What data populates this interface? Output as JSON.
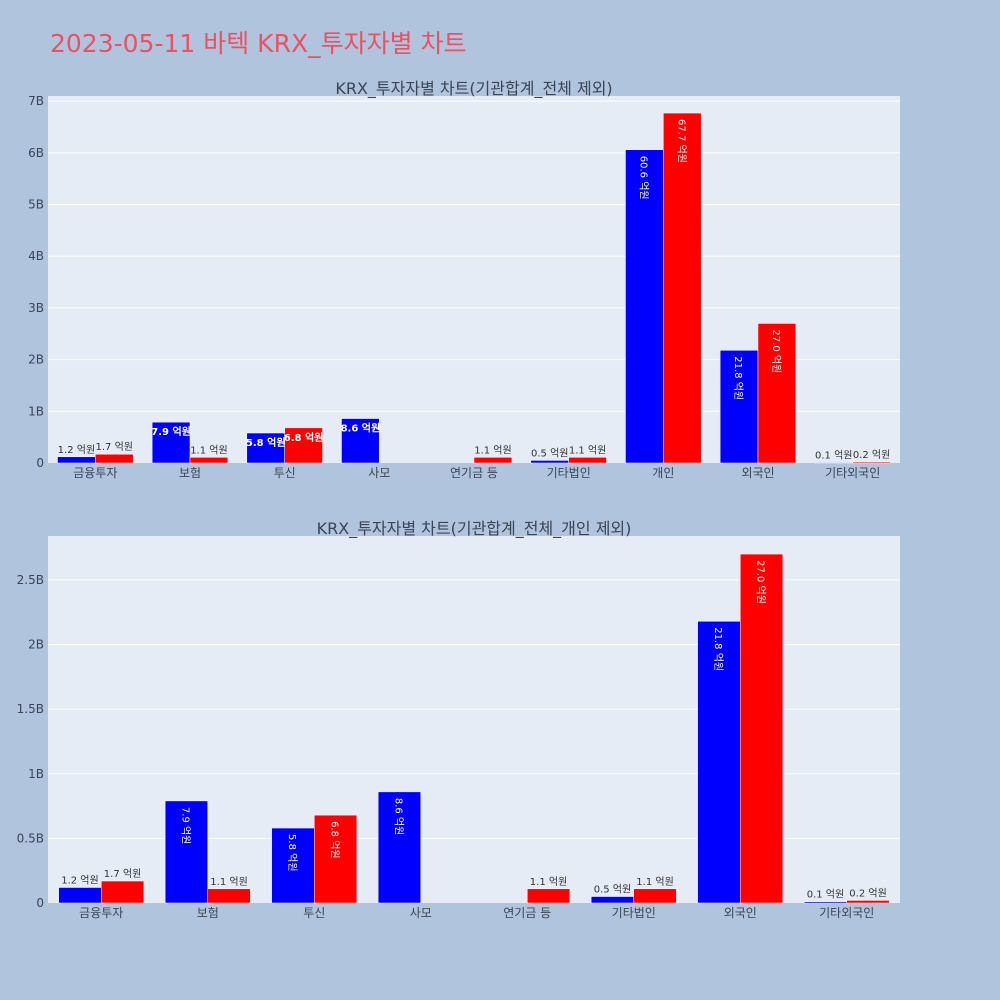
{
  "page": {
    "title": "2023-05-11 바텍 KRX_투자자별 차트"
  },
  "colors": {
    "series_a": "#0000ff",
    "series_b": "#ff0000",
    "plot_bg": "#e5ecf6",
    "page_bg": "#b0c4de",
    "title": "#ef5060"
  },
  "chart_data": [
    {
      "type": "bar",
      "title": "KRX_투자자별 차트(기관합계_전체 제외)",
      "categories": [
        "금융투자",
        "보험",
        "투신",
        "사모",
        "연기금 등",
        "기타법인",
        "개인",
        "외국인",
        "기타외국인"
      ],
      "series": [
        {
          "values": [
            0.12,
            0.79,
            0.58,
            0.86,
            0,
            0.05,
            6.06,
            2.18,
            0.01
          ],
          "labels": [
            "1.2 억원",
            "7.9 억원",
            "5.8 억원",
            "8.6 억원",
            "",
            "0.5 억원",
            "60.6 억원",
            "21.8 억원",
            "0.1 억원"
          ]
        },
        {
          "values": [
            0.17,
            0.11,
            0.68,
            0,
            0.11,
            0.11,
            6.77,
            2.7,
            0.02
          ],
          "labels": [
            "1.7 억원",
            "1.1 억원",
            "6.8 억원",
            "",
            "1.1 억원",
            "1.1 억원",
            "67.7 억원",
            "27.0 억원",
            "0.2 억원"
          ]
        }
      ],
      "ylim": [
        0,
        7.1
      ],
      "yticks": [
        0,
        1,
        2,
        3,
        4,
        5,
        6,
        7
      ],
      "ytick_labels": [
        "0",
        "1B",
        "2B",
        "3B",
        "4B",
        "5B",
        "6B",
        "7B"
      ],
      "grid": true,
      "legend": "none"
    },
    {
      "type": "bar",
      "title": "KRX_투자자별 차트(기관합계_전체_개인 제외)",
      "categories": [
        "금융투자",
        "보험",
        "투신",
        "사모",
        "연기금 등",
        "기타법인",
        "외국인",
        "기타외국인"
      ],
      "series": [
        {
          "values": [
            0.12,
            0.79,
            0.58,
            0.86,
            0,
            0.05,
            2.18,
            0.01
          ],
          "labels": [
            "1.2 억원",
            "7.9 억원",
            "5.8 억원",
            "8.6 억원",
            "",
            "0.5 억원",
            "21.8 억원",
            "0.1 억원"
          ]
        },
        {
          "values": [
            0.17,
            0.11,
            0.68,
            0,
            0.11,
            0.11,
            2.7,
            0.02
          ],
          "labels": [
            "1.7 억원",
            "1.1 억원",
            "6.8 억원",
            "",
            "1.1 억원",
            "1.1 억원",
            "27.0 억원",
            "0.2 억원"
          ]
        }
      ],
      "ylim": [
        0,
        2.84
      ],
      "yticks": [
        0,
        0.5,
        1,
        1.5,
        2,
        2.5
      ],
      "ytick_labels": [
        "0",
        "0.5B",
        "1B",
        "1.5B",
        "2B",
        "2.5B"
      ],
      "grid": true,
      "legend": "none"
    }
  ]
}
